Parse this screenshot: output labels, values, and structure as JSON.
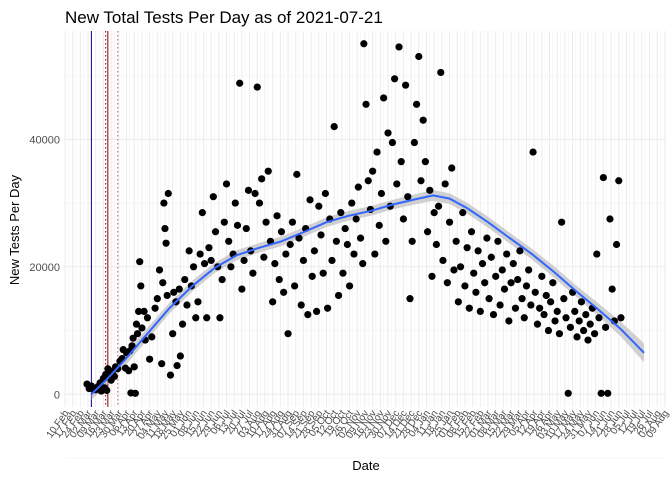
{
  "chart_data": {
    "type": "scatter",
    "title": "New Total Tests Per Day as of 2021-07-21",
    "xlabel": "Date",
    "ylabel": "New Tests Per Day",
    "x_range": [
      "2020-02-10",
      "2021-08-10"
    ],
    "ylim": [
      -2000,
      57000
    ],
    "y_ticks": [
      0,
      20000,
      40000
    ],
    "y_tick_labels": [
      "0",
      "20000",
      "40000"
    ],
    "grid": true,
    "x_tick_labels": [
      "10 Feb",
      "17 Feb",
      "24 Feb",
      "02 Mar",
      "09 Mar",
      "16 Mar",
      "23 Mar",
      "30 Mar",
      "06 Apr",
      "13 Apr",
      "20 Apr",
      "27 Apr",
      "04 May",
      "11 May",
      "18 May",
      "25 May",
      "01 Jun",
      "08 Jun",
      "15 Jun",
      "22 Jun",
      "29 Jun",
      "06 Jul",
      "13 Jul",
      "20 Jul",
      "27 Jul",
      "03 Aug",
      "10 Aug",
      "17 Aug",
      "24 Aug",
      "31 Aug",
      "07 Sep",
      "14 Sep",
      "21 Sep",
      "28 Sep",
      "05 Oct",
      "12 Oct",
      "19 Oct",
      "26 Oct",
      "02 Nov",
      "09 Nov",
      "16 Nov",
      "23 Nov",
      "30 Nov",
      "07 Dec",
      "14 Dec",
      "21 Dec",
      "28 Dec",
      "04 Jan",
      "11 Jan",
      "18 Jan",
      "25 Jan",
      "01 Feb",
      "08 Feb",
      "15 Feb",
      "22 Feb",
      "01 Mar",
      "08 Mar",
      "15 Mar",
      "22 Mar",
      "29 Mar",
      "05 Apr",
      "12 Apr",
      "19 Apr",
      "26 Apr",
      "03 May",
      "10 May",
      "17 May",
      "24 May",
      "31 May",
      "07 Jun",
      "14 Jun",
      "21 Jun",
      "28 Jun",
      "05 Jul",
      "12 Jul",
      "19 Jul",
      "26 Jul",
      "02 Aug",
      "09 Aug"
    ],
    "reference_lines": [
      {
        "date": "2020-03-05",
        "color": "#00008b",
        "style": "solid"
      },
      {
        "date": "2020-03-18",
        "color": "#8b0000",
        "style": "dotted"
      },
      {
        "date": "2020-03-20",
        "color": "#8b0000",
        "style": "solid"
      },
      {
        "date": "2020-03-29",
        "color": "#cd5c5c",
        "style": "dotted"
      }
    ],
    "smooth": {
      "color": "#3366ff",
      "band_color": "#bdbdbd",
      "x": [
        "2020-03-05",
        "2020-03-20",
        "2020-04-05",
        "2020-04-25",
        "2020-05-15",
        "2020-06-05",
        "2020-06-25",
        "2020-07-15",
        "2020-08-05",
        "2020-08-25",
        "2020-09-15",
        "2020-10-05",
        "2020-10-25",
        "2020-11-15",
        "2020-12-05",
        "2020-12-25",
        "2021-01-10",
        "2021-01-25",
        "2021-02-10",
        "2021-03-01",
        "2021-03-20",
        "2021-04-10",
        "2021-04-30",
        "2021-05-20",
        "2021-06-10",
        "2021-06-30",
        "2021-07-21"
      ],
      "y": [
        0,
        2500,
        5500,
        9500,
        13500,
        17000,
        19800,
        21800,
        23000,
        24000,
        25500,
        27000,
        28000,
        28800,
        29800,
        30600,
        31200,
        30700,
        29200,
        27000,
        24600,
        22000,
        19200,
        16200,
        13200,
        10200,
        6500
      ],
      "band": [
        900,
        900,
        1000,
        900,
        850,
        850,
        800,
        800,
        750,
        750,
        750,
        750,
        750,
        750,
        750,
        800,
        850,
        850,
        850,
        850,
        850,
        850,
        900,
        900,
        1000,
        1150,
        1500
      ]
    },
    "points": [
      [
        "2020-03-01",
        1600
      ],
      [
        "2020-03-03",
        900
      ],
      [
        "2020-03-05",
        1300
      ],
      [
        "2020-03-07",
        800
      ],
      [
        "2020-03-09",
        700
      ],
      [
        "2020-03-11",
        1200
      ],
      [
        "2020-03-13",
        1800
      ],
      [
        "2020-03-14",
        500
      ],
      [
        "2020-03-16",
        2500
      ],
      [
        "2020-03-17",
        1000
      ],
      [
        "2020-03-18",
        3100
      ],
      [
        "2020-03-19",
        600
      ],
      [
        "2020-03-20",
        4000
      ],
      [
        "2020-03-21",
        3800
      ],
      [
        "2020-03-22",
        3000
      ],
      [
        "2020-03-23",
        2200
      ],
      [
        "2020-03-24",
        3500
      ],
      [
        "2020-03-26",
        2800
      ],
      [
        "2020-03-27",
        4300
      ],
      [
        "2020-03-29",
        4000
      ],
      [
        "2020-03-31",
        5200
      ],
      [
        "2020-04-02",
        5600
      ],
      [
        "2020-04-03",
        7000
      ],
      [
        "2020-04-05",
        4100
      ],
      [
        "2020-04-06",
        6500
      ],
      [
        "2020-04-08",
        3700
      ],
      [
        "2020-04-09",
        6800
      ],
      [
        "2020-04-10",
        200
      ],
      [
        "2020-04-11",
        7600
      ],
      [
        "2020-04-12",
        8800
      ],
      [
        "2020-04-13",
        4300
      ],
      [
        "2020-04-14",
        150
      ],
      [
        "2020-04-15",
        11000
      ],
      [
        "2020-04-16",
        9500
      ],
      [
        "2020-04-17",
        13000
      ],
      [
        "2020-04-18",
        20800
      ],
      [
        "2020-04-19",
        17000
      ],
      [
        "2020-04-20",
        10400
      ],
      [
        "2020-04-22",
        13000
      ],
      [
        "2020-04-23",
        8500
      ],
      [
        "2020-04-25",
        12000
      ],
      [
        "2020-04-27",
        5500
      ],
      [
        "2020-04-29",
        9000
      ],
      [
        "2020-05-02",
        13500
      ],
      [
        "2020-05-04",
        15000
      ],
      [
        "2020-05-06",
        19500
      ],
      [
        "2020-05-08",
        4800
      ],
      [
        "2020-05-09",
        17500
      ],
      [
        "2020-05-10",
        30000
      ],
      [
        "2020-05-11",
        26000
      ],
      [
        "2020-05-12",
        23700
      ],
      [
        "2020-05-13",
        15500
      ],
      [
        "2020-05-14",
        31500
      ],
      [
        "2020-05-16",
        3000
      ],
      [
        "2020-05-18",
        9500
      ],
      [
        "2020-05-19",
        16000
      ],
      [
        "2020-05-21",
        14500
      ],
      [
        "2020-05-22",
        4500
      ],
      [
        "2020-05-24",
        16500
      ],
      [
        "2020-05-25",
        6000
      ],
      [
        "2020-05-27",
        11000
      ],
      [
        "2020-05-29",
        18000
      ],
      [
        "2020-05-31",
        14000
      ],
      [
        "2020-06-02",
        22500
      ],
      [
        "2020-06-04",
        17000
      ],
      [
        "2020-06-06",
        20000
      ],
      [
        "2020-06-08",
        12000
      ],
      [
        "2020-06-10",
        14500
      ],
      [
        "2020-06-12",
        22000
      ],
      [
        "2020-06-14",
        28500
      ],
      [
        "2020-06-16",
        20500
      ],
      [
        "2020-06-18",
        12000
      ],
      [
        "2020-06-20",
        23000
      ],
      [
        "2020-06-22",
        21000
      ],
      [
        "2020-06-24",
        31000
      ],
      [
        "2020-06-26",
        25500
      ],
      [
        "2020-06-28",
        20000
      ],
      [
        "2020-06-30",
        12000
      ],
      [
        "2020-07-02",
        18000
      ],
      [
        "2020-07-04",
        27000
      ],
      [
        "2020-07-06",
        33000
      ],
      [
        "2020-07-08",
        24000
      ],
      [
        "2020-07-10",
        20000
      ],
      [
        "2020-07-12",
        22000
      ],
      [
        "2020-07-14",
        30000
      ],
      [
        "2020-07-16",
        26500
      ],
      [
        "2020-07-18",
        48800
      ],
      [
        "2020-07-20",
        16500
      ],
      [
        "2020-07-22",
        21000
      ],
      [
        "2020-07-24",
        26000
      ],
      [
        "2020-07-26",
        32000
      ],
      [
        "2020-07-28",
        22500
      ],
      [
        "2020-07-30",
        19000
      ],
      [
        "2020-08-01",
        31500
      ],
      [
        "2020-08-03",
        48200
      ],
      [
        "2020-08-05",
        30000
      ],
      [
        "2020-08-07",
        33800
      ],
      [
        "2020-08-09",
        21500
      ],
      [
        "2020-08-11",
        27000
      ],
      [
        "2020-08-13",
        35000
      ],
      [
        "2020-08-15",
        24000
      ],
      [
        "2020-08-17",
        14500
      ],
      [
        "2020-08-19",
        20500
      ],
      [
        "2020-08-21",
        28000
      ],
      [
        "2020-08-23",
        18000
      ],
      [
        "2020-08-25",
        25500
      ],
      [
        "2020-08-27",
        16000
      ],
      [
        "2020-08-29",
        22000
      ],
      [
        "2020-08-31",
        9500
      ],
      [
        "2020-09-02",
        23500
      ],
      [
        "2020-09-04",
        27000
      ],
      [
        "2020-09-06",
        17000
      ],
      [
        "2020-09-08",
        34500
      ],
      [
        "2020-09-10",
        24500
      ],
      [
        "2020-09-12",
        14000
      ],
      [
        "2020-09-14",
        21000
      ],
      [
        "2020-09-16",
        26000
      ],
      [
        "2020-09-18",
        12500
      ],
      [
        "2020-09-20",
        30500
      ],
      [
        "2020-09-22",
        18500
      ],
      [
        "2020-09-24",
        22500
      ],
      [
        "2020-09-26",
        13000
      ],
      [
        "2020-09-28",
        29500
      ],
      [
        "2020-09-30",
        25000
      ],
      [
        "2020-10-02",
        19000
      ],
      [
        "2020-10-04",
        31500
      ],
      [
        "2020-10-06",
        13500
      ],
      [
        "2020-10-08",
        27500
      ],
      [
        "2020-10-10",
        21000
      ],
      [
        "2020-10-12",
        42000
      ],
      [
        "2020-10-14",
        24000
      ],
      [
        "2020-10-16",
        15500
      ],
      [
        "2020-10-18",
        28500
      ],
      [
        "2020-10-20",
        19000
      ],
      [
        "2020-10-22",
        26000
      ],
      [
        "2020-10-24",
        23500
      ],
      [
        "2020-10-26",
        17000
      ],
      [
        "2020-10-28",
        30000
      ],
      [
        "2020-10-30",
        22000
      ],
      [
        "2020-11-01",
        27500
      ],
      [
        "2020-11-03",
        32500
      ],
      [
        "2020-11-05",
        24500
      ],
      [
        "2020-11-07",
        20500
      ],
      [
        "2020-11-08",
        55000
      ],
      [
        "2020-11-10",
        45500
      ],
      [
        "2020-11-12",
        33500
      ],
      [
        "2020-11-14",
        29000
      ],
      [
        "2020-11-16",
        35000
      ],
      [
        "2020-11-18",
        22000
      ],
      [
        "2020-11-20",
        38000
      ],
      [
        "2020-11-22",
        26500
      ],
      [
        "2020-11-24",
        31500
      ],
      [
        "2020-11-26",
        46500
      ],
      [
        "2020-11-28",
        24000
      ],
      [
        "2020-11-30",
        41000
      ],
      [
        "2020-12-02",
        29500
      ],
      [
        "2020-12-04",
        39500
      ],
      [
        "2020-12-06",
        49500
      ],
      [
        "2020-12-08",
        33000
      ],
      [
        "2020-12-10",
        54500
      ],
      [
        "2020-12-12",
        36500
      ],
      [
        "2020-12-14",
        27500
      ],
      [
        "2020-12-16",
        48500
      ],
      [
        "2020-12-18",
        31000
      ],
      [
        "2020-12-20",
        15000
      ],
      [
        "2020-12-22",
        24000
      ],
      [
        "2020-12-24",
        39500
      ],
      [
        "2020-12-26",
        45500
      ],
      [
        "2020-12-28",
        53000
      ],
      [
        "2020-12-30",
        33500
      ],
      [
        "2021-01-01",
        43000
      ],
      [
        "2021-01-03",
        36500
      ],
      [
        "2021-01-05",
        25500
      ],
      [
        "2021-01-07",
        32000
      ],
      [
        "2021-01-09",
        18500
      ],
      [
        "2021-01-11",
        28500
      ],
      [
        "2021-01-13",
        23500
      ],
      [
        "2021-01-15",
        29500
      ],
      [
        "2021-01-17",
        50500
      ],
      [
        "2021-01-19",
        21000
      ],
      [
        "2021-01-21",
        33000
      ],
      [
        "2021-01-23",
        17500
      ],
      [
        "2021-01-25",
        27000
      ],
      [
        "2021-01-27",
        35500
      ],
      [
        "2021-01-29",
        19500
      ],
      [
        "2021-01-31",
        24000
      ],
      [
        "2021-02-02",
        14500
      ],
      [
        "2021-02-04",
        20000
      ],
      [
        "2021-02-06",
        28500
      ],
      [
        "2021-02-08",
        17000
      ],
      [
        "2021-02-10",
        23000
      ],
      [
        "2021-02-12",
        13500
      ],
      [
        "2021-02-14",
        25500
      ],
      [
        "2021-02-16",
        19000
      ],
      [
        "2021-02-18",
        16000
      ],
      [
        "2021-02-20",
        22500
      ],
      [
        "2021-02-22",
        13000
      ],
      [
        "2021-02-24",
        20500
      ],
      [
        "2021-02-26",
        17500
      ],
      [
        "2021-02-28",
        24500
      ],
      [
        "2021-03-02",
        15000
      ],
      [
        "2021-03-04",
        21500
      ],
      [
        "2021-03-06",
        12500
      ],
      [
        "2021-03-08",
        18500
      ],
      [
        "2021-03-10",
        24000
      ],
      [
        "2021-03-12",
        14000
      ],
      [
        "2021-03-14",
        19500
      ],
      [
        "2021-03-16",
        16500
      ],
      [
        "2021-03-18",
        22000
      ],
      [
        "2021-03-20",
        11500
      ],
      [
        "2021-03-22",
        17500
      ],
      [
        "2021-03-24",
        20500
      ],
      [
        "2021-03-26",
        13500
      ],
      [
        "2021-03-28",
        18000
      ],
      [
        "2021-03-30",
        22500
      ],
      [
        "2021-04-01",
        15000
      ],
      [
        "2021-04-03",
        12000
      ],
      [
        "2021-04-05",
        17000
      ],
      [
        "2021-04-07",
        19500
      ],
      [
        "2021-04-09",
        14000
      ],
      [
        "2021-04-11",
        38000
      ],
      [
        "2021-04-13",
        16000
      ],
      [
        "2021-04-15",
        11000
      ],
      [
        "2021-04-17",
        13500
      ],
      [
        "2021-04-19",
        18500
      ],
      [
        "2021-04-21",
        12500
      ],
      [
        "2021-04-23",
        15500
      ],
      [
        "2021-04-25",
        10000
      ],
      [
        "2021-04-27",
        14500
      ],
      [
        "2021-04-29",
        17500
      ],
      [
        "2021-05-01",
        11500
      ],
      [
        "2021-05-03",
        13000
      ],
      [
        "2021-05-05",
        9500
      ],
      [
        "2021-05-07",
        27000
      ],
      [
        "2021-05-09",
        15000
      ],
      [
        "2021-05-11",
        12000
      ],
      [
        "2021-05-13",
        150
      ],
      [
        "2021-05-15",
        10500
      ],
      [
        "2021-05-17",
        16000
      ],
      [
        "2021-05-19",
        13000
      ],
      [
        "2021-05-21",
        9000
      ],
      [
        "2021-05-23",
        11500
      ],
      [
        "2021-05-25",
        14500
      ],
      [
        "2021-05-27",
        10000
      ],
      [
        "2021-05-29",
        12500
      ],
      [
        "2021-05-31",
        8500
      ],
      [
        "2021-06-02",
        11000
      ],
      [
        "2021-06-04",
        13500
      ],
      [
        "2021-06-06",
        9500
      ],
      [
        "2021-06-08",
        22000
      ],
      [
        "2021-06-10",
        12000
      ],
      [
        "2021-06-12",
        150
      ],
      [
        "2021-06-14",
        34000
      ],
      [
        "2021-06-16",
        10500
      ],
      [
        "2021-06-18",
        150
      ],
      [
        "2021-06-20",
        27500
      ],
      [
        "2021-06-22",
        16500
      ],
      [
        "2021-06-24",
        11500
      ],
      [
        "2021-06-26",
        23500
      ],
      [
        "2021-06-28",
        33500
      ],
      [
        "2021-06-30",
        12000
      ]
    ]
  }
}
